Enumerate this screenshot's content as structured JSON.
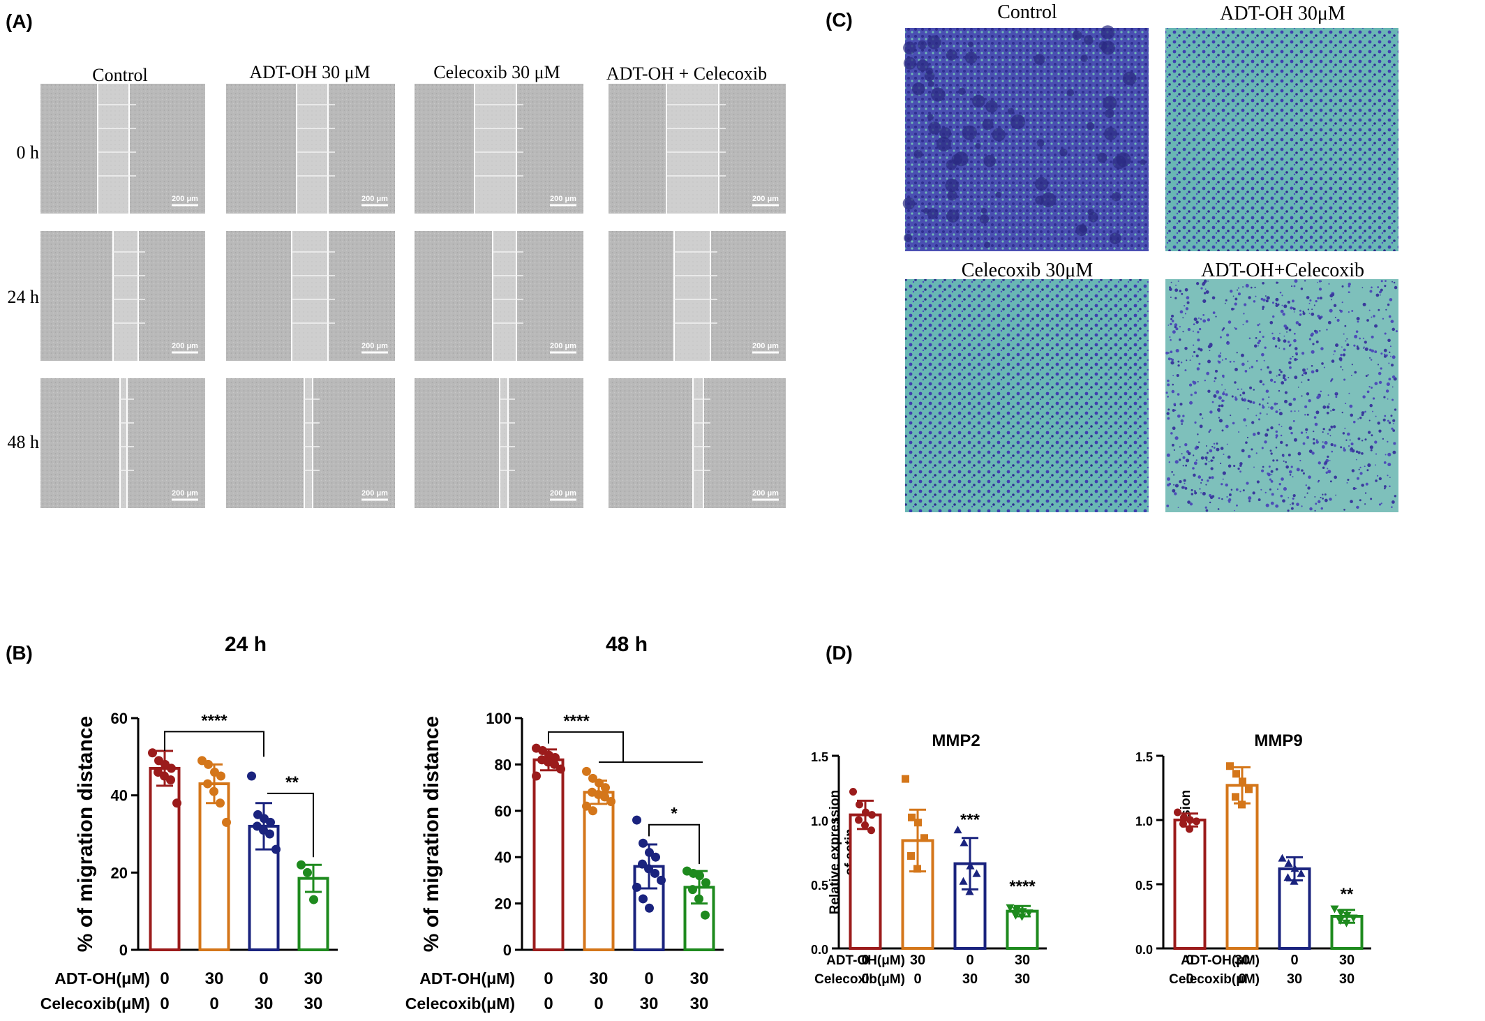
{
  "panels": {
    "A": {
      "label": "(A)",
      "column_titles": [
        "Control",
        "ADT-OH 30 μM",
        "Celecoxib 30 μM",
        "ADT-OH + Celecoxib"
      ],
      "row_labels": [
        "0 h",
        "24 h",
        "48 h"
      ],
      "scale_bar": "200 μm"
    },
    "B": {
      "label": "(B)"
    },
    "C": {
      "label": "(C)",
      "titles": [
        "Control",
        "ADT-OH 30μM",
        "Celecoxib 30μM",
        "ADT-OH+Celecoxib"
      ]
    },
    "D": {
      "label": "(D)"
    }
  },
  "colors": {
    "group1": "#9b1b1b",
    "group2": "#d4761a",
    "group3": "#1a237e",
    "group4": "#1e8a1e",
    "cell_stain": "#3f3fb0",
    "membrane": "#69b7b4"
  },
  "treatment_labels": {
    "adt": "ADT-OH(μM)",
    "cel": "Celecoxib(μM)",
    "adt_values": [
      "0",
      "30",
      "0",
      "30"
    ],
    "cel_values": [
      "0",
      "0",
      "30",
      "30"
    ]
  },
  "chart_data": [
    {
      "type": "bar",
      "title": "24 h",
      "ylabel": "% of migration distance",
      "ylim": [
        0,
        60
      ],
      "yticks": [
        "0",
        "20",
        "40",
        "60"
      ],
      "categories": [
        "ADT-OH 0 / Celecoxib 0",
        "ADT-OH 30 / Celecoxib 0",
        "ADT-OH 0 / Celecoxib 30",
        "ADT-OH 30 / Celecoxib 30"
      ],
      "values": [
        47,
        43,
        32,
        18.5
      ],
      "errors": [
        4.5,
        5,
        6,
        3.5
      ],
      "points": [
        [
          51,
          49,
          48,
          47,
          46,
          45,
          44,
          38
        ],
        [
          49,
          48,
          46,
          45,
          43,
          41,
          38,
          33
        ],
        [
          45,
          35,
          34,
          33,
          32,
          31,
          30,
          26
        ],
        [
          22,
          20,
          13
        ]
      ],
      "markers": [
        "circle",
        "circle",
        "circle",
        "circle"
      ],
      "annotations": [
        "****",
        "**"
      ]
    },
    {
      "type": "bar",
      "title": "48 h",
      "ylabel": "% of migration distance",
      "ylim": [
        0,
        100
      ],
      "yticks": [
        "0",
        "20",
        "40",
        "60",
        "80",
        "100"
      ],
      "categories": [
        "ADT-OH 0 / Celecoxib 0",
        "ADT-OH 30 / Celecoxib 0",
        "ADT-OH 0 / Celecoxib 30",
        "ADT-OH 30 / Celecoxib 30"
      ],
      "values": [
        82,
        68,
        36,
        27
      ],
      "errors": [
        4.5,
        5,
        9.5,
        7
      ],
      "points": [
        [
          87,
          86,
          84,
          83,
          82,
          81,
          80,
          78,
          75
        ],
        [
          77,
          74,
          72,
          70,
          68,
          67,
          66,
          64,
          62,
          60
        ],
        [
          56,
          46,
          42,
          40,
          37,
          35,
          33,
          30,
          27,
          22,
          18
        ],
        [
          34,
          33,
          32,
          29,
          26,
          22,
          15
        ]
      ],
      "markers": [
        "circle",
        "circle",
        "circle",
        "circle"
      ],
      "annotations": [
        "****",
        "*"
      ]
    },
    {
      "type": "bar",
      "title": "MMP2",
      "ylabel": "Relative expression of actin",
      "ylim": [
        0,
        1.5
      ],
      "yticks": [
        "0.0",
        "0.5",
        "1.0",
        "1.5"
      ],
      "categories": [
        "ADT-OH 0 / Celecoxib 0",
        "ADT-OH 30 / Celecoxib 0",
        "ADT-OH 0 / Celecoxib 30",
        "ADT-OH 30 / Celecoxib 30"
      ],
      "values": [
        1.04,
        0.84,
        0.66,
        0.29
      ],
      "errors": [
        0.11,
        0.24,
        0.2,
        0.04
      ],
      "points": [
        [
          1.22,
          1.12,
          1.06,
          1.04,
          1.0,
          0.96,
          0.92
        ],
        [
          1.32,
          1.02,
          0.98,
          0.86,
          0.72,
          0.62
        ],
        [
          0.92,
          0.82,
          0.64,
          0.58,
          0.52,
          0.44
        ],
        [
          0.32,
          0.3,
          0.29,
          0.28,
          0.26,
          0.25
        ]
      ],
      "markers": [
        "circle",
        "square",
        "triangle",
        "triangle-down"
      ],
      "annotations": [
        "***",
        "****"
      ]
    },
    {
      "type": "bar",
      "title": "MMP9",
      "ylabel": "Relative expression of actin",
      "ylim": [
        0,
        1.5
      ],
      "yticks": [
        "0.0",
        "0.5",
        "1.0",
        "1.5"
      ],
      "categories": [
        "ADT-OH 0 / Celecoxib 0",
        "ADT-OH 30 / Celecoxib 0",
        "ADT-OH 0 / Celecoxib 30",
        "ADT-OH 30 / Celecoxib 30"
      ],
      "values": [
        1.0,
        1.27,
        0.62,
        0.25
      ],
      "errors": [
        0.05,
        0.14,
        0.09,
        0.05
      ],
      "points": [
        [
          1.06,
          1.02,
          1.0,
          0.99,
          0.97,
          0.93
        ],
        [
          1.42,
          1.36,
          1.3,
          1.24,
          1.18,
          1.12
        ],
        [
          0.7,
          0.66,
          0.62,
          0.58,
          0.55,
          0.52
        ],
        [
          0.31,
          0.28,
          0.26,
          0.24,
          0.22,
          0.2
        ]
      ],
      "markers": [
        "circle",
        "square",
        "triangle",
        "triangle-down"
      ],
      "annotations": [
        "**"
      ]
    }
  ]
}
